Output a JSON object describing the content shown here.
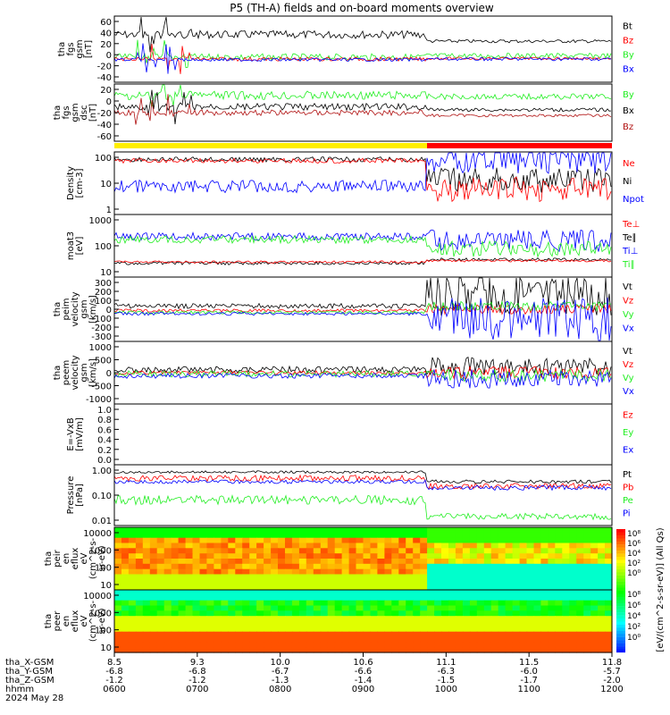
{
  "title": "P5 (TH-A) fields and on-board moments overview",
  "colors": {
    "black": "#000000",
    "red": "#ff0000",
    "green": "#22ee22",
    "blue": "#0000ff",
    "darkred": "#b01010",
    "yellow": "#ffee00"
  },
  "chart_data": [
    {
      "type": "line",
      "ylabel": [
        "tha",
        "fgs",
        "gsm",
        "[nT]"
      ],
      "ticks": [
        "60",
        "40",
        "20",
        "0",
        "-20",
        "-40"
      ],
      "legend": [
        {
          "name": "Bt",
          "color": "black"
        },
        {
          "name": "Bz",
          "color": "red"
        },
        {
          "name": "By",
          "color": "green"
        },
        {
          "name": "Bx",
          "color": "blue"
        }
      ]
    },
    {
      "type": "line",
      "ylabel": [
        "tha",
        "fgs",
        "gsm",
        "dsc",
        "[nT]"
      ],
      "ticks": [
        "20",
        "0",
        "-20",
        "-40",
        "-60"
      ],
      "legend": [
        {
          "name": "By",
          "color": "green"
        },
        {
          "name": "Bx",
          "color": "black"
        },
        {
          "name": "Bz",
          "color": "darkred"
        }
      ]
    },
    {
      "type": "line",
      "ylabel": [
        "Density",
        "[cm-3]"
      ],
      "ticks": [
        "100",
        "10",
        "1"
      ],
      "legend": [
        {
          "name": "Ne",
          "color": "red"
        },
        {
          "name": "Ni",
          "color": "black"
        },
        {
          "name": "Npot",
          "color": "blue"
        }
      ]
    },
    {
      "type": "line",
      "ylabel": [
        "moat3",
        "[eV]"
      ],
      "ticks": [
        "1000",
        "100",
        "10"
      ],
      "legend": [
        {
          "name": "Te⊥",
          "color": "red"
        },
        {
          "name": "Te∥",
          "color": "black"
        },
        {
          "name": "Ti⊥",
          "color": "blue"
        },
        {
          "name": "Ti∥",
          "color": "green"
        }
      ]
    },
    {
      "type": "line",
      "ylabel": [
        "tha",
        "peim",
        "velocity",
        "gsm",
        "[km/s]"
      ],
      "ticks": [
        "300",
        "200",
        "100",
        "0",
        "-100",
        "-200",
        "-300"
      ],
      "legend": [
        {
          "name": "Vt",
          "color": "black"
        },
        {
          "name": "Vz",
          "color": "red"
        },
        {
          "name": "Vy",
          "color": "green"
        },
        {
          "name": "Vx",
          "color": "blue"
        }
      ]
    },
    {
      "type": "line",
      "ylabel": [
        "tha",
        "peem",
        "velocity",
        "gsm",
        "[km/s]"
      ],
      "ticks": [
        "1000",
        "500",
        "0",
        "-500",
        "-1000"
      ],
      "legend": [
        {
          "name": "Vt",
          "color": "black"
        },
        {
          "name": "Vz",
          "color": "red"
        },
        {
          "name": "Vy",
          "color": "green"
        },
        {
          "name": "Vx",
          "color": "blue"
        }
      ]
    },
    {
      "type": "line",
      "ylabel": [
        "E=-VxB",
        "[mV/m]"
      ],
      "ticks": [
        "1.0",
        "0.8",
        "0.6",
        "0.4",
        "0.2",
        "0.0"
      ],
      "legend": [
        {
          "name": "Ez",
          "color": "red"
        },
        {
          "name": "Ey",
          "color": "green"
        },
        {
          "name": "Ex",
          "color": "blue"
        }
      ]
    },
    {
      "type": "line",
      "ylabel": [
        "Pressure",
        "[nPa]"
      ],
      "ticks": [
        "1.00",
        "0.10",
        "0.01"
      ],
      "legend": [
        {
          "name": "Pt",
          "color": "black"
        },
        {
          "name": "Pb",
          "color": "red"
        },
        {
          "name": "Pe",
          "color": "green"
        },
        {
          "name": "Pi",
          "color": "blue"
        }
      ]
    },
    {
      "type": "heatmap",
      "ylabel": [
        "tha",
        "peir",
        "en",
        "eflux",
        "eV",
        "(cm^2-s-",
        "sr-eV)"
      ],
      "ticks": [
        "10000",
        "1000",
        "100",
        "10"
      ]
    },
    {
      "type": "heatmap",
      "ylabel": [
        "tha",
        "peer",
        "en",
        "eflux",
        "eV",
        "(cm^2-s-",
        "sr-eV)"
      ],
      "ticks": [
        "10000",
        "1000",
        "100",
        "10"
      ],
      "colorbar_label": "[eV/(cm^2-s-sr-eV)] (All Qs)"
    }
  ],
  "colorbar": {
    "upper_ticks": [
      "10⁸",
      "10⁶",
      "10⁴",
      "10²",
      "10⁰"
    ],
    "lower_ticks": [
      "10⁸",
      "10⁶",
      "10⁴",
      "10²",
      "10⁰"
    ]
  },
  "x_axis": {
    "row_labels": [
      "tha_X-GSM",
      "tha_Y-GSM",
      "tha_Z-GSM",
      "hhmm",
      "2024 May 28"
    ],
    "columns": [
      [
        "8.5",
        "-6.8",
        "-1.2",
        "0600"
      ],
      [
        "9.3",
        "-6.8",
        "-1.2",
        "0700"
      ],
      [
        "10.0",
        "-6.7",
        "-1.3",
        "0800"
      ],
      [
        "10.6",
        "-6.6",
        "-1.4",
        "0900"
      ],
      [
        "11.1",
        "-6.3",
        "-1.5",
        "1000"
      ],
      [
        "11.5",
        "-6.0",
        "-1.7",
        "1100"
      ],
      [
        "11.8",
        "-5.7",
        "-2.0",
        "1200"
      ]
    ]
  }
}
